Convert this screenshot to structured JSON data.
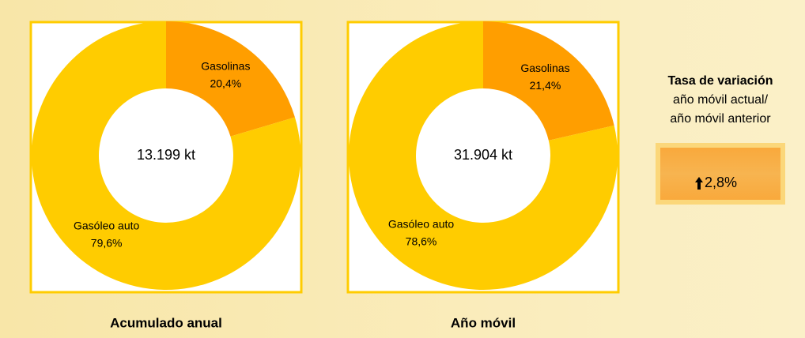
{
  "chart_data": [
    {
      "type": "pie",
      "title": "Acumulado anual",
      "center_label": "13.199 kt",
      "categories": [
        "Gasolinas",
        "Gasóleo auto"
      ],
      "values": [
        20.4,
        79.6
      ],
      "value_labels": [
        "20,4%",
        "79,6%"
      ],
      "colors": [
        "#ff9e00",
        "#ffcc00"
      ]
    },
    {
      "type": "pie",
      "title": "Año móvil",
      "center_label": "31.904 kt",
      "categories": [
        "Gasolinas",
        "Gasóleo auto"
      ],
      "values": [
        21.4,
        78.6
      ],
      "value_labels": [
        "21,4%",
        "78,6%"
      ],
      "colors": [
        "#ff9e00",
        "#ffcc00"
      ]
    }
  ],
  "variation": {
    "title": "Tasa de variación",
    "lines": [
      "año móvil actual/",
      "año móvil anterior"
    ],
    "value": "2,8%"
  }
}
